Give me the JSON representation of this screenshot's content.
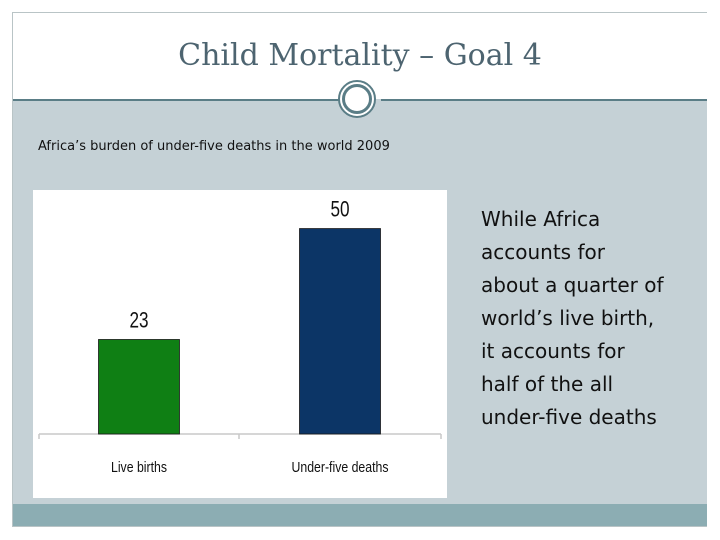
{
  "slide": {
    "title": "Child Mortality – Goal 4",
    "subtitle": "Africa’s burden of under-five deaths in the world 2009",
    "side_text": [
      "While Africa",
      "accounts for",
      "about a quarter of",
      "world’s live birth,",
      "it accounts for",
      "half of the all",
      "under-five deaths"
    ]
  },
  "icons": {
    "title_divider": "circle-divider-icon"
  },
  "colors": {
    "title": "#4d6470",
    "band": "#c5d1d6",
    "accent": "#5a7d86",
    "footer": "#8cadb3"
  },
  "chart_data": {
    "type": "bar",
    "categories": [
      "Live births",
      "Under-five deaths"
    ],
    "values": [
      23,
      50
    ],
    "value_labels": [
      "23",
      "50"
    ],
    "colors": [
      "#0f7f14",
      "#0c3566"
    ],
    "ylim": [
      0,
      55
    ],
    "grid": false,
    "xlabel": "",
    "ylabel": ""
  }
}
